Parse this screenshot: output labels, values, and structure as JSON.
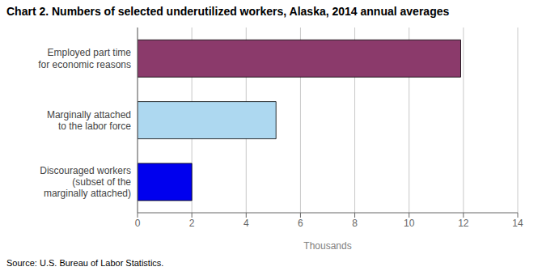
{
  "chart_data": {
    "type": "bar",
    "orientation": "horizontal",
    "title": "Chart 2. Numbers of selected underutilized workers, Alaska,  2014 annual averages",
    "categories": [
      "Discouraged workers\n(subset of the\nmarginally attached)",
      "Marginally attached\nto the labor force",
      "Employed part time\nfor economic reasons"
    ],
    "values": [
      2.0,
      5.1,
      11.9
    ],
    "colors": [
      "#0000EE",
      "#ADD8F0",
      "#8B3A6B"
    ],
    "xlabel": "Thousands",
    "xlim": [
      0,
      14
    ],
    "xticks": [
      0,
      2,
      4,
      6,
      8,
      10,
      12,
      14
    ],
    "grid": true,
    "source": "Source: U.S. Bureau of Labor Statistics."
  }
}
